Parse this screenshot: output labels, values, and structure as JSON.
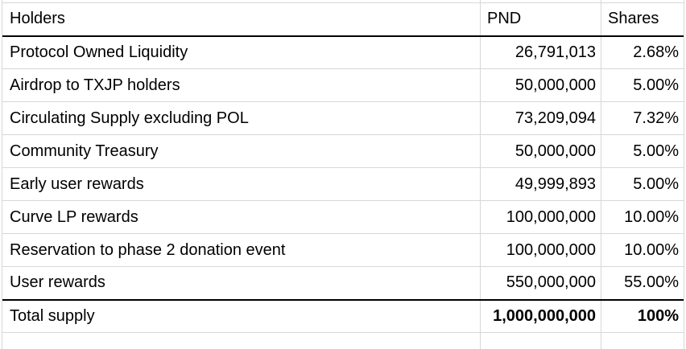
{
  "table": {
    "header": {
      "holders": "Holders",
      "pnd": "PND",
      "shares": "Shares"
    },
    "rows": [
      {
        "holder": "Protocol Owned Liquidity",
        "pnd": "26,791,013",
        "shares": "2.68%"
      },
      {
        "holder": "Airdrop to TXJP holders",
        "pnd": "50,000,000",
        "shares": "5.00%"
      },
      {
        "holder": "Circulating Supply excluding POL",
        "pnd": "73,209,094",
        "shares": "7.32%"
      },
      {
        "holder": "Community Treasury",
        "pnd": "50,000,000",
        "shares": "5.00%"
      },
      {
        "holder": "Early user rewards",
        "pnd": "49,999,893",
        "shares": "5.00%"
      },
      {
        "holder": "Curve LP rewards",
        "pnd": "100,000,000",
        "shares": "10.00%"
      },
      {
        "holder": "Reservation to phase 2 donation event",
        "pnd": "100,000,000",
        "shares": "10.00%"
      },
      {
        "holder": "User rewards",
        "pnd": "550,000,000",
        "shares": "55.00%"
      }
    ],
    "total_row": {
      "holder": "Total supply",
      "pnd": "1,000,000,000",
      "shares": "100%"
    }
  },
  "colors": {
    "gridline": "#d7d7d7",
    "strong-border": "#000000",
    "text": "#000000",
    "background": "#ffffff"
  }
}
